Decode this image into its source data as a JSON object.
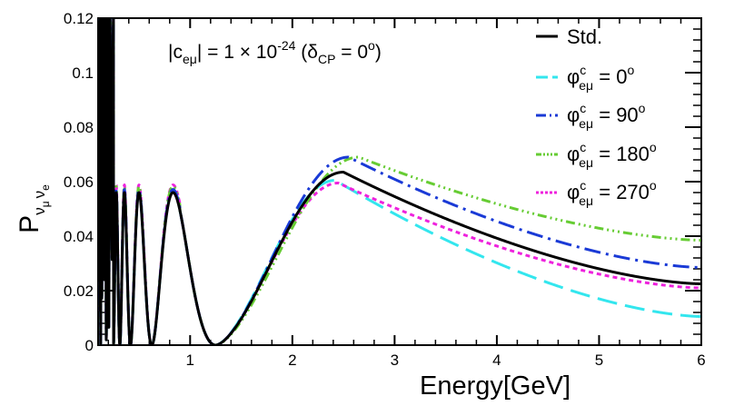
{
  "chart_data": {
    "type": "line",
    "title": "",
    "xlabel": "Energy[GeV]",
    "ylabel": {
      "main": "P",
      "sub1": "ν",
      "sub1_sub": "μ",
      "sub2": "ν",
      "sub2_sub": "e"
    },
    "xlim": [
      0.1,
      6
    ],
    "ylim": [
      0,
      0.12
    ],
    "x_ticks": [
      1,
      2,
      3,
      4,
      5,
      6
    ],
    "y_ticks": [
      0,
      0.02,
      0.04,
      0.06,
      0.08,
      0.1,
      0.12
    ],
    "x_tick_labels": [
      "1",
      "2",
      "3",
      "4",
      "5",
      "6"
    ],
    "y_tick_labels": [
      "0",
      "0.02",
      "0.04",
      "0.06",
      "0.08",
      "0.1",
      "0.12"
    ],
    "annotation": {
      "pre": "|c",
      "sub": "eμ",
      "mid": "| = 1 × 10",
      "sup": "-24",
      "post_open": " (δ",
      "post_sub": "CP",
      "post_eq": " = 0",
      "post_sup": "o",
      "post_close": ")"
    },
    "legend": {
      "position": "top-right",
      "entries": [
        {
          "label": "Std.",
          "phi": "",
          "value": ""
        },
        {
          "label": "",
          "phi": "φ",
          "sup": "c",
          "sub": "eμ",
          "value": " = 0",
          "deg": "o"
        },
        {
          "label": "",
          "phi": "φ",
          "sup": "c",
          "sub": "eμ",
          "value": " = 90",
          "deg": "o"
        },
        {
          "label": "",
          "phi": "φ",
          "sup": "c",
          "sub": "eμ",
          "value": " = 180",
          "deg": "o"
        },
        {
          "label": "",
          "phi": "φ",
          "sup": "c",
          "sub": "eμ",
          "value": " = 270",
          "deg": "o"
        }
      ]
    },
    "series": [
      {
        "name": "Std.",
        "color": "#000000",
        "dash": "",
        "peak_x": 2.5,
        "peak_y": 0.0635,
        "tail_y": 0.0225,
        "low_scale": 1.0
      },
      {
        "name": "phi = 0",
        "color": "#33e6ee",
        "dash": "22,9",
        "peak_x": 2.42,
        "peak_y": 0.0605,
        "tail_y": 0.0105,
        "low_scale": 1.01
      },
      {
        "name": "phi = 90",
        "color": "#1a3ad6",
        "dash": "18,6,3,6",
        "peak_x": 2.55,
        "peak_y": 0.069,
        "tail_y": 0.0285,
        "low_scale": 1.02
      },
      {
        "name": "phi = 180",
        "color": "#66cc33",
        "dash": "10,4,2,4,2,4,2,4",
        "peak_x": 2.65,
        "peak_y": 0.069,
        "tail_y": 0.0385,
        "low_scale": 1.04
      },
      {
        "name": "phi = 270",
        "color": "#ee22dd",
        "dash": "5,4",
        "peak_x": 2.45,
        "peak_y": 0.0595,
        "tail_y": 0.021,
        "low_scale": 1.05
      }
    ]
  }
}
